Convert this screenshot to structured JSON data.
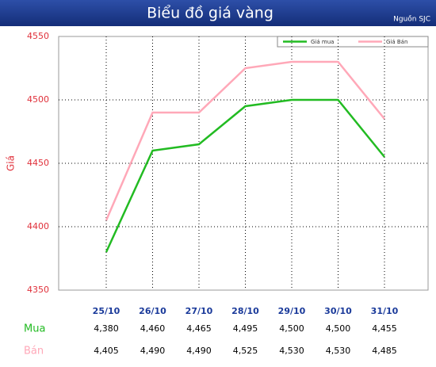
{
  "chart_data": {
    "type": "line",
    "title": "Biểu đồ giá vàng",
    "source": "Nguồn SJC",
    "y_label": "Giá",
    "categories": [
      "25/10",
      "26/10",
      "27/10",
      "28/10",
      "29/10",
      "30/10",
      "31/10"
    ],
    "series": [
      {
        "name": "Giá mua",
        "row_label": "Mua",
        "color": "#22bb22",
        "values": [
          4380,
          4460,
          4465,
          4495,
          4500,
          4500,
          4455
        ],
        "value_labels": [
          "4,380",
          "4,460",
          "4,465",
          "4,495",
          "4,500",
          "4,500",
          "4,455"
        ]
      },
      {
        "name": "Giá Bán",
        "row_label": "Bán",
        "color": "#ffa8b8",
        "values": [
          4405,
          4490,
          4490,
          4525,
          4530,
          4530,
          4485
        ],
        "value_labels": [
          "4,405",
          "4,490",
          "4,490",
          "4,525",
          "4,530",
          "4,530",
          "4,485"
        ]
      }
    ],
    "ylim": [
      4350,
      4550
    ],
    "yticks": [
      4350,
      4400,
      4450,
      4500,
      4550
    ],
    "grid": true,
    "legend": "top-right"
  }
}
